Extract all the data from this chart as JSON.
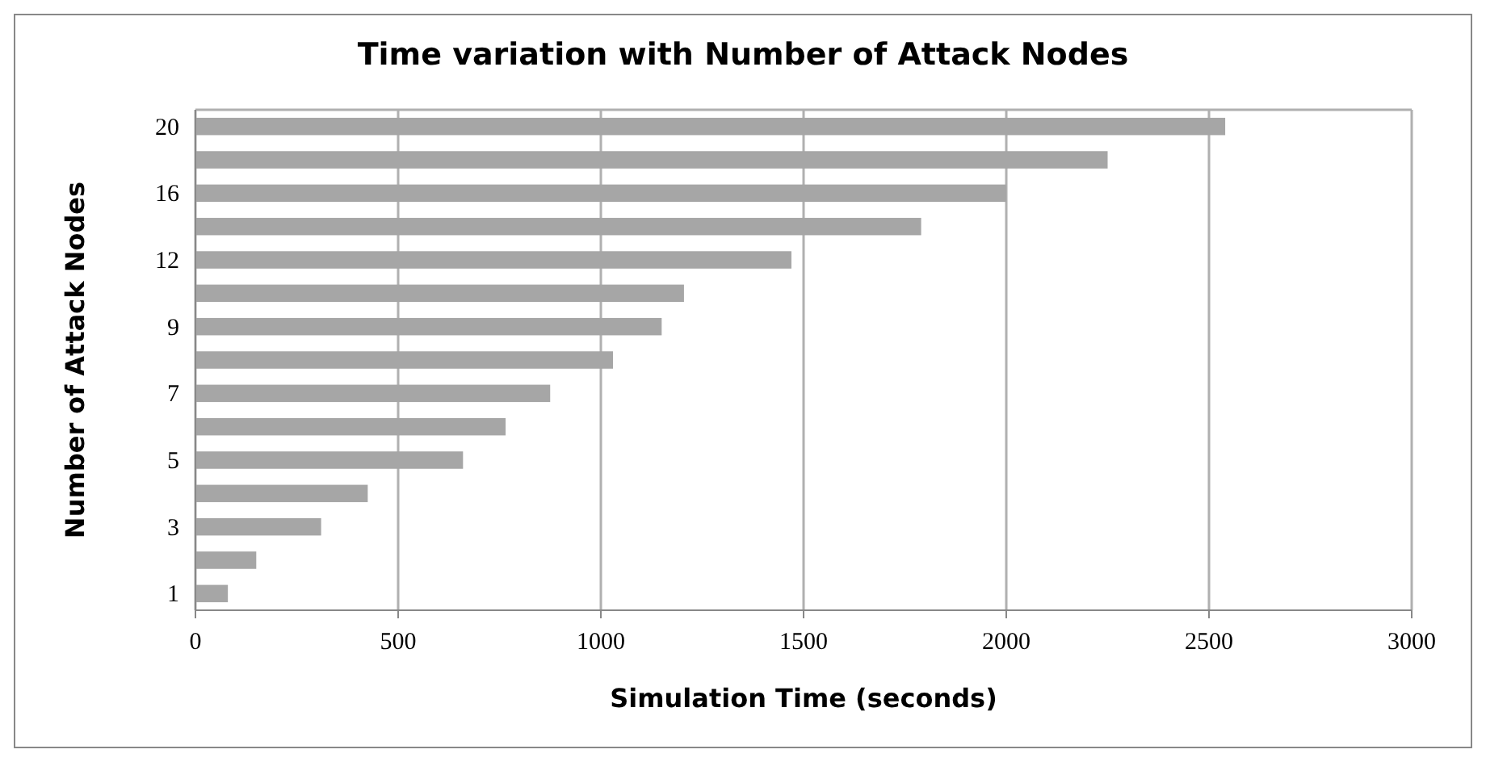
{
  "chart_data": {
    "type": "bar",
    "orientation": "horizontal",
    "title": "Time variation with Number of Attack Nodes",
    "xlabel": "Simulation Time (seconds)",
    "ylabel": "Number of Attack Nodes",
    "categories": [
      "20",
      null,
      "16",
      null,
      "12",
      null,
      "9",
      null,
      "7",
      null,
      "5",
      null,
      "3",
      null,
      "1"
    ],
    "values": [
      2540,
      2250,
      2000,
      1790,
      1470,
      1205,
      1150,
      1030,
      875,
      765,
      660,
      425,
      310,
      150,
      80
    ],
    "color": "#a6a6a6",
    "xlim": [
      0,
      3000
    ],
    "xticks": [
      0,
      500,
      1000,
      1500,
      2000,
      2500,
      3000
    ],
    "grid": "x"
  }
}
